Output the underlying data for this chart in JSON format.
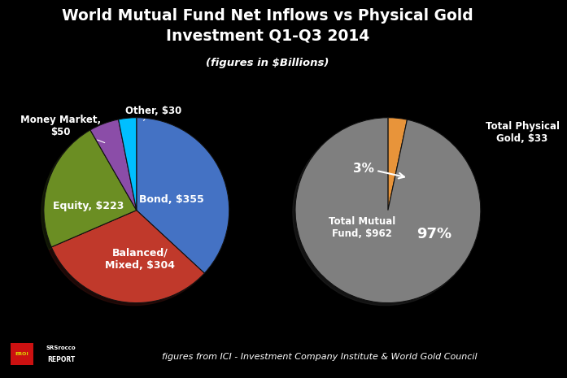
{
  "title": "World Mutual Fund Net Inflows vs Physical Gold\nInvestment Q1-Q3 2014",
  "subtitle": "(figures in $Billions)",
  "background_color": "#000000",
  "title_color": "#ffffff",
  "subtitle_bg": "#3a3a3a",
  "left_pie": {
    "labels": [
      "Bond, $355",
      "Balanced/\nMixed, $304",
      "Equity, $223",
      "Money Market,\n$50",
      "Other, $30"
    ],
    "values": [
      355,
      304,
      223,
      50,
      30
    ],
    "colors": [
      "#4472C4",
      "#C0392B",
      "#6B8E23",
      "#8B4DA8",
      "#00BFFF"
    ],
    "startangle": 90
  },
  "right_pie": {
    "labels": [
      "Total Physical\nGold, $33",
      "Total Mutual\nFund, $962"
    ],
    "values": [
      33,
      962
    ],
    "colors": [
      "#E8943A",
      "#7F7F7F"
    ],
    "startangle": 90
  },
  "footer_text": "figures from ICI - Investment Company Institute & World Gold Council",
  "footer_color": "#ffffff",
  "footer_fontsize": 8
}
